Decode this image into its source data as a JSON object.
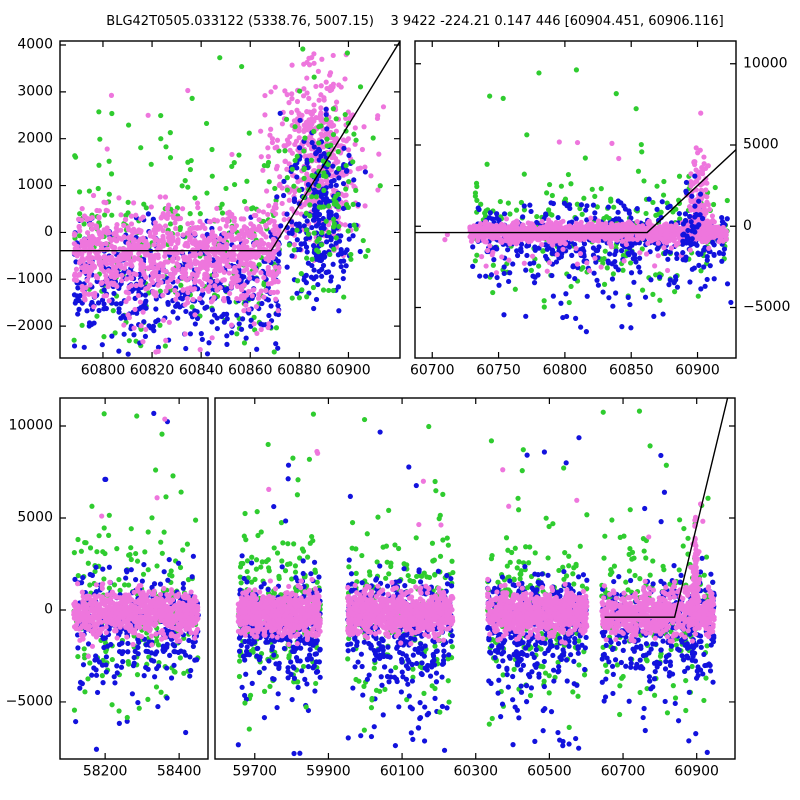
{
  "chart_data": {
    "type": "scatter",
    "title": "BLG42T0505.033122 (5338.76, 5007.15)    3 9422 -224.21 0.147 446 [60904.451, 60906.116]",
    "background": "#ffffff",
    "axis_color": "#000000",
    "line_color": "#000000",
    "marker_radius": 2.6,
    "tick_font_px": 14,
    "palette": {
      "v": "#EE76DD",
      "g": "#2FCC2F",
      "b": "#1212DD"
    },
    "point_series": [
      {
        "key": "v",
        "label": "violet points",
        "color": "#EE76DD"
      },
      {
        "key": "g",
        "label": "green points",
        "color": "#2FCC2F"
      },
      {
        "key": "b",
        "label": "blue points",
        "color": "#1212DD"
      }
    ],
    "panels": [
      {
        "name": "top-left",
        "rect": {
          "top": 41,
          "bottom": 358
        },
        "segments": [
          {
            "left": 60,
            "right": 400,
            "xlim": [
              60782.5,
              60921
            ],
            "xticks": [
              60800,
              60820,
              60840,
              60860,
              60880,
              60900
            ]
          }
        ],
        "ylim": [
          -2680,
          4085
        ],
        "yticks": [
          -2000,
          -1000,
          0,
          1000,
          2000,
          3000,
          4000
        ],
        "ylabel_side": "left",
        "line": [
          [
            60782.5,
            -390
          ],
          [
            60868.5,
            -390
          ],
          [
            60921,
            4080
          ]
        ],
        "clusters": [
          {
            "c": "g",
            "n": 250,
            "x": [
              60788,
              60872
            ],
            "y": [
              "n",
              -250,
              1150,
              -2670,
              3300
            ]
          },
          {
            "c": "b",
            "n": 430,
            "x": [
              60788,
              60872
            ],
            "y": [
              "n",
              -1150,
              720,
              -2670,
              400
            ]
          },
          {
            "c": "v",
            "n": 1000,
            "x": [
              60788,
              60872
            ],
            "y": [
              "n",
              -480,
              500,
              -2400,
              800
            ]
          },
          {
            "c": "v",
            "n": 12,
            "x": [
              60790,
              60868
            ],
            "y": [
              "u",
              -2650,
              -1900
            ]
          },
          {
            "c": "v",
            "n": 8,
            "x": [
              60795,
              60875
            ],
            "y": [
              "u",
              1200,
              3200
            ]
          },
          {
            "c": "v",
            "n": 480,
            "xg": [
              60887,
              8.5
            ],
            "y": [
              "n",
              1500,
              1000,
              -700,
              3980
            ]
          },
          {
            "c": "b",
            "n": 260,
            "xg": [
              60888,
              7
            ],
            "y": [
              "n",
              450,
              950,
              -1800,
              2700
            ]
          },
          {
            "c": "g",
            "n": 120,
            "xg": [
              60890,
              9
            ],
            "y": [
              "n",
              800,
              1150,
              -1500,
              3400
            ]
          },
          {
            "c": "g",
            "n": 6,
            "x": [
              60790,
              60900
            ],
            "y": [
              "u",
              2500,
              3950
            ]
          }
        ]
      },
      {
        "name": "top-right",
        "rect": {
          "top": 41,
          "bottom": 358
        },
        "segments": [
          {
            "left": 415,
            "right": 736,
            "xlim": [
              60687,
              60929
            ],
            "xticks": [
              60700,
              60750,
              60800,
              60850,
              60900
            ]
          }
        ],
        "ylim": [
          -8110,
          11400
        ],
        "yticks": [
          -5000,
          0,
          5000,
          10000
        ],
        "ylabel_side": "right",
        "line": [
          [
            60687,
            -390
          ],
          [
            60862,
            -390
          ],
          [
            60929,
            4715
          ]
        ],
        "clusters": [
          {
            "c": "g",
            "n": 250,
            "x": [
              60732,
              60923
            ],
            "y": [
              "n",
              -150,
              1800,
              -5000,
              6500
            ]
          },
          {
            "c": "g",
            "n": 4,
            "x": [
              60750,
              60900
            ],
            "y": [
              "u",
              -5600,
              -4500
            ]
          },
          {
            "c": "b",
            "n": 400,
            "x": [
              60730,
              60923
            ],
            "y": [
              "n",
              -850,
              1200,
              -5200,
              1800
            ]
          },
          {
            "c": "b",
            "n": 28,
            "xg": [
              60830,
              40
            ],
            "y": [
              "n",
              -4600,
              1300,
              -6900,
              -2200
            ]
          },
          {
            "c": "v",
            "n": 60,
            "x": [
              60735,
              60920
            ],
            "y": [
              "n",
              -1200,
              900,
              -3400,
              2500
            ]
          },
          {
            "c": "v",
            "n": 2,
            "x": [
              60705,
              60712
            ],
            "y": [
              "u",
              -900,
              -500
            ]
          },
          {
            "c": "v",
            "n": 1200,
            "x": [
              60728,
              60922
            ],
            "y": [
              "n",
              -380,
              280,
              -1600,
              600
            ]
          },
          {
            "c": "v",
            "n": 5,
            "x": [
              60760,
              60905
            ],
            "y": [
              "u",
              3000,
              7600
            ]
          },
          {
            "c": "v",
            "n": 150,
            "xg": [
              60901,
              4
            ],
            "y": [
              "h",
              -380,
              2100,
              5050
            ]
          },
          {
            "c": "b",
            "n": 45,
            "xg": [
              60896,
              6
            ],
            "y": [
              "n",
              200,
              1500,
              -3600,
              3600
            ]
          },
          {
            "c": "g",
            "n": 7,
            "x": [
              60740,
              60910
            ],
            "y": [
              "u",
              5500,
              9800
            ]
          }
        ]
      },
      {
        "name": "bottom",
        "rect": {
          "top": 398,
          "bottom": 759
        },
        "segments": [
          {
            "left": 60,
            "right": 208,
            "xlim": [
              58078,
              58478
            ],
            "xticks": [
              58200,
              58400
            ]
          },
          {
            "left": 215,
            "right": 735,
            "xlim": [
              59592,
              61004
            ],
            "xticks": [
              59700,
              59900,
              60100,
              60300,
              60500,
              60700,
              60900
            ]
          }
        ],
        "ylim": [
          -8100,
          11520
        ],
        "yticks": [
          -5000,
          0,
          5000,
          10000
        ],
        "ylabel_side": "left",
        "line": [
          [
            60650,
            -390
          ],
          [
            60840,
            -390
          ],
          [
            60986,
            11700
          ]
        ],
        "clusters": [
          {
            "c": "g",
            "n": 200,
            "x": [
              58115,
              58452
            ],
            "y": [
              "n",
              100,
              2250,
              -5600,
              7000
            ]
          },
          {
            "c": "b",
            "n": 320,
            "x": [
              58115,
              58452
            ],
            "y": [
              "n",
              -950,
              1550,
              -7000,
              3000
            ]
          },
          {
            "c": "v",
            "n": 720,
            "x": [
              58115,
              58452
            ],
            "y": [
              "n",
              -180,
              580,
              -2800,
              2200
            ]
          },
          {
            "c": "g",
            "n": 5,
            "x": [
              58115,
              58452
            ],
            "y": [
              "u",
              5500,
              11000
            ]
          },
          {
            "c": "b",
            "n": 4,
            "x": [
              58115,
              58452
            ],
            "y": [
              "u",
              4500,
              10800
            ]
          },
          {
            "c": "v",
            "n": 3,
            "x": [
              58115,
              58452
            ],
            "y": [
              "u",
              3500,
              10600
            ]
          },
          {
            "c": "b",
            "n": 7,
            "x": [
              58115,
              58452
            ],
            "y": [
              "u",
              -7800,
              -4800
            ]
          },
          {
            "c": "g",
            "n": 4,
            "x": [
              58115,
              58452
            ],
            "y": [
              "u",
              -6600,
              -4200
            ]
          },
          {
            "c": "g",
            "n": 190,
            "x": [
              59655,
              59878
            ],
            "y": [
              "n",
              100,
              2250,
              -5600,
              7000
            ]
          },
          {
            "c": "b",
            "n": 300,
            "x": [
              59655,
              59878
            ],
            "y": [
              "n",
              -950,
              1550,
              -7000,
              3000
            ]
          },
          {
            "c": "v",
            "n": 650,
            "x": [
              59655,
              59878
            ],
            "y": [
              "n",
              -180,
              580,
              -2800,
              2200
            ]
          },
          {
            "c": "g",
            "n": 5,
            "x": [
              59655,
              59878
            ],
            "y": [
              "u",
              5500,
              11000
            ]
          },
          {
            "c": "b",
            "n": 4,
            "x": [
              59655,
              59878
            ],
            "y": [
              "u",
              4500,
              10800
            ]
          },
          {
            "c": "v",
            "n": 3,
            "x": [
              59655,
              59878
            ],
            "y": [
              "u",
              3500,
              10600
            ]
          },
          {
            "c": "b",
            "n": 7,
            "x": [
              59655,
              59878
            ],
            "y": [
              "u",
              -7800,
              -4800
            ]
          },
          {
            "c": "g",
            "n": 4,
            "x": [
              59655,
              59878
            ],
            "y": [
              "u",
              -6600,
              -4200
            ]
          },
          {
            "c": "g",
            "n": 220,
            "x": [
              59952,
              60238
            ],
            "y": [
              "n",
              100,
              2250,
              -5600,
              7000
            ]
          },
          {
            "c": "b",
            "n": 360,
            "x": [
              59952,
              60238
            ],
            "y": [
              "n",
              -950,
              1550,
              -7000,
              3000
            ]
          },
          {
            "c": "b",
            "n": 20,
            "xg": [
              60100,
              60
            ],
            "y": [
              "u",
              -7600,
              -3500
            ]
          },
          {
            "c": "v",
            "n": 780,
            "x": [
              59952,
              60238
            ],
            "y": [
              "n",
              -180,
              580,
              -2800,
              2200
            ]
          },
          {
            "c": "g",
            "n": 5,
            "x": [
              59952,
              60238
            ],
            "y": [
              "u",
              5500,
              11000
            ]
          },
          {
            "c": "b",
            "n": 4,
            "x": [
              59952,
              60238
            ],
            "y": [
              "u",
              4500,
              10800
            ]
          },
          {
            "c": "v",
            "n": 3,
            "x": [
              59952,
              60238
            ],
            "y": [
              "u",
              3500,
              10600
            ]
          },
          {
            "c": "b",
            "n": 7,
            "x": [
              59952,
              60238
            ],
            "y": [
              "u",
              -7800,
              -4800
            ]
          },
          {
            "c": "g",
            "n": 4,
            "x": [
              59952,
              60238
            ],
            "y": [
              "u",
              -6600,
              -4200
            ]
          },
          {
            "c": "g",
            "n": 215,
            "x": [
              60332,
              60602
            ],
            "y": [
              "n",
              100,
              2250,
              -5600,
              7000
            ]
          },
          {
            "c": "b",
            "n": 350,
            "x": [
              60332,
              60602
            ],
            "y": [
              "n",
              -950,
              1550,
              -7000,
              3000
            ]
          },
          {
            "c": "b",
            "n": 18,
            "xg": [
              60470,
              60
            ],
            "y": [
              "u",
              -7400,
              -3500
            ]
          },
          {
            "c": "v",
            "n": 780,
            "x": [
              60332,
              60602
            ],
            "y": [
              "n",
              -180,
              580,
              -2800,
              2200
            ]
          },
          {
            "c": "g",
            "n": 5,
            "x": [
              60332,
              60602
            ],
            "y": [
              "u",
              5500,
              11000
            ]
          },
          {
            "c": "b",
            "n": 4,
            "x": [
              60332,
              60602
            ],
            "y": [
              "u",
              4500,
              10800
            ]
          },
          {
            "c": "v",
            "n": 3,
            "x": [
              60332,
              60602
            ],
            "y": [
              "u",
              3500,
              10600
            ]
          },
          {
            "c": "b",
            "n": 7,
            "x": [
              60332,
              60602
            ],
            "y": [
              "u",
              -7800,
              -4800
            ]
          },
          {
            "c": "g",
            "n": 4,
            "x": [
              60332,
              60602
            ],
            "y": [
              "u",
              -6600,
              -4200
            ]
          },
          {
            "c": "g",
            "n": 200,
            "x": [
              60642,
              60948
            ],
            "y": [
              "n",
              100,
              2250,
              -5600,
              7000
            ]
          },
          {
            "c": "b",
            "n": 320,
            "x": [
              60642,
              60948
            ],
            "y": [
              "n",
              -950,
              1550,
              -7000,
              3000
            ]
          },
          {
            "c": "v",
            "n": 700,
            "x": [
              60642,
              60948
            ],
            "y": [
              "n",
              -180,
              580,
              -2800,
              2200
            ]
          },
          {
            "c": "v",
            "n": 130,
            "xg": [
              60896,
              5
            ],
            "y": [
              "h",
              -400,
              2300,
              5300
            ]
          },
          {
            "c": "g",
            "n": 5,
            "x": [
              60642,
              60948
            ],
            "y": [
              "u",
              5500,
              11000
            ]
          },
          {
            "c": "b",
            "n": 4,
            "x": [
              60642,
              60948
            ],
            "y": [
              "u",
              4500,
              10800
            ]
          },
          {
            "c": "v",
            "n": 3,
            "x": [
              60642,
              60948
            ],
            "y": [
              "u",
              3500,
              10600
            ]
          },
          {
            "c": "b",
            "n": 7,
            "x": [
              60642,
              60948
            ],
            "y": [
              "u",
              -7800,
              -4800
            ]
          },
          {
            "c": "g",
            "n": 4,
            "x": [
              60642,
              60948
            ],
            "y": [
              "u",
              -6600,
              -4200
            ]
          }
        ]
      }
    ]
  }
}
